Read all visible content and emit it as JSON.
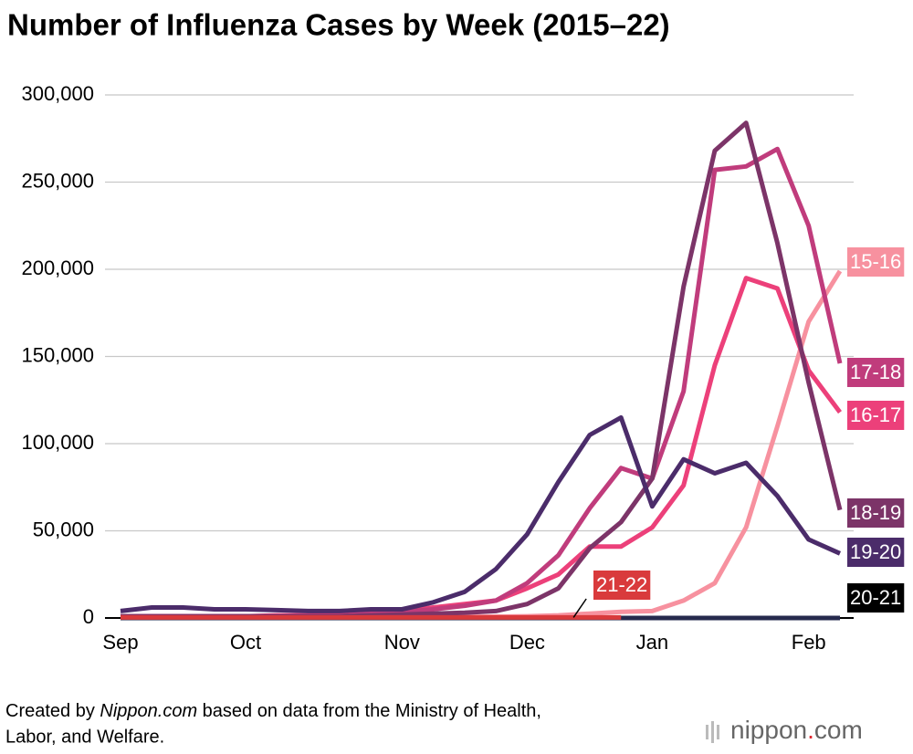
{
  "chart_data": {
    "type": "line",
    "title": "Number of Influenza Cases by Week (2015–22)",
    "categories": [
      "Sep",
      null,
      null,
      null,
      "Oct",
      null,
      null,
      null,
      null,
      "Nov",
      null,
      null,
      null,
      "Dec",
      null,
      null,
      null,
      "Jan",
      null,
      null,
      null,
      null,
      "Feb",
      null
    ],
    "ylim": [
      0,
      300000
    ],
    "yticks": [
      0,
      {
        "value": 50000,
        "label": "50,000"
      },
      {
        "value": 100000,
        "label": "100,000"
      },
      {
        "value": 150000,
        "label": "150,000"
      },
      {
        "value": 200000,
        "label": "200,000"
      },
      {
        "value": 250000,
        "label": "250,000"
      },
      {
        "value": 300000,
        "label": "300,000"
      }
    ],
    "grid": true,
    "series": [
      {
        "name": "15-16",
        "color": "#f7919f",
        "values": [
          500,
          500,
          500,
          500,
          500,
          500,
          500,
          500,
          500,
          500,
          600,
          700,
          800,
          1000,
          1500,
          2500,
          3500,
          4000,
          10000,
          20000,
          52000,
          110000,
          170000,
          199000
        ]
      },
      {
        "name": "16-17",
        "color": "#ec407a",
        "values": [
          1000,
          1000,
          1000,
          1000,
          1000,
          1500,
          1500,
          2000,
          3000,
          4000,
          6000,
          8000,
          10000,
          17000,
          25000,
          41000,
          41000,
          52000,
          76000,
          145000,
          195000,
          189000,
          142000,
          118000
        ]
      },
      {
        "name": "17-18",
        "color": "#c03c7c",
        "values": [
          1000,
          1000,
          1000,
          1000,
          1000,
          1000,
          1000,
          1000,
          2500,
          3500,
          5000,
          7000,
          10000,
          20000,
          36000,
          63000,
          86000,
          80000,
          130000,
          257000,
          259000,
          269000,
          225000,
          146000
        ]
      },
      {
        "name": "18-19",
        "color": "#7c3468",
        "values": [
          1000,
          1000,
          1000,
          1000,
          1000,
          1000,
          1000,
          1000,
          1500,
          2000,
          2500,
          3000,
          4000,
          8000,
          17000,
          40000,
          55000,
          80000,
          190000,
          268000,
          284000,
          215000,
          135000,
          62000
        ]
      },
      {
        "name": "19-20",
        "color": "#4b2c6a",
        "values": [
          4000,
          6000,
          6000,
          5000,
          5000,
          4500,
          4000,
          4000,
          5000,
          5000,
          9000,
          15000,
          28000,
          48000,
          78000,
          105000,
          115000,
          64000,
          91000,
          83000,
          89000,
          70000,
          45000,
          37000
        ]
      },
      {
        "name": "20-21",
        "color": "#262a4d",
        "values": [
          0,
          0,
          0,
          0,
          0,
          0,
          0,
          0,
          0,
          0,
          0,
          0,
          0,
          0,
          0,
          0,
          0,
          0,
          0,
          0,
          0,
          0,
          0,
          0
        ]
      },
      {
        "name": "21-22",
        "color": "#d93a3c",
        "values": [
          300,
          300,
          300,
          300,
          300,
          300,
          300,
          300,
          300,
          300,
          300,
          300,
          300,
          300,
          300,
          300,
          300,
          null,
          null,
          null,
          null,
          null,
          null,
          null
        ]
      }
    ],
    "source": [
      "Created by ",
      "Nippon.com",
      " based on data from the Ministry of Health,",
      "Labor, and Welfare."
    ],
    "logo": [
      "nippon",
      ".",
      "com"
    ]
  }
}
